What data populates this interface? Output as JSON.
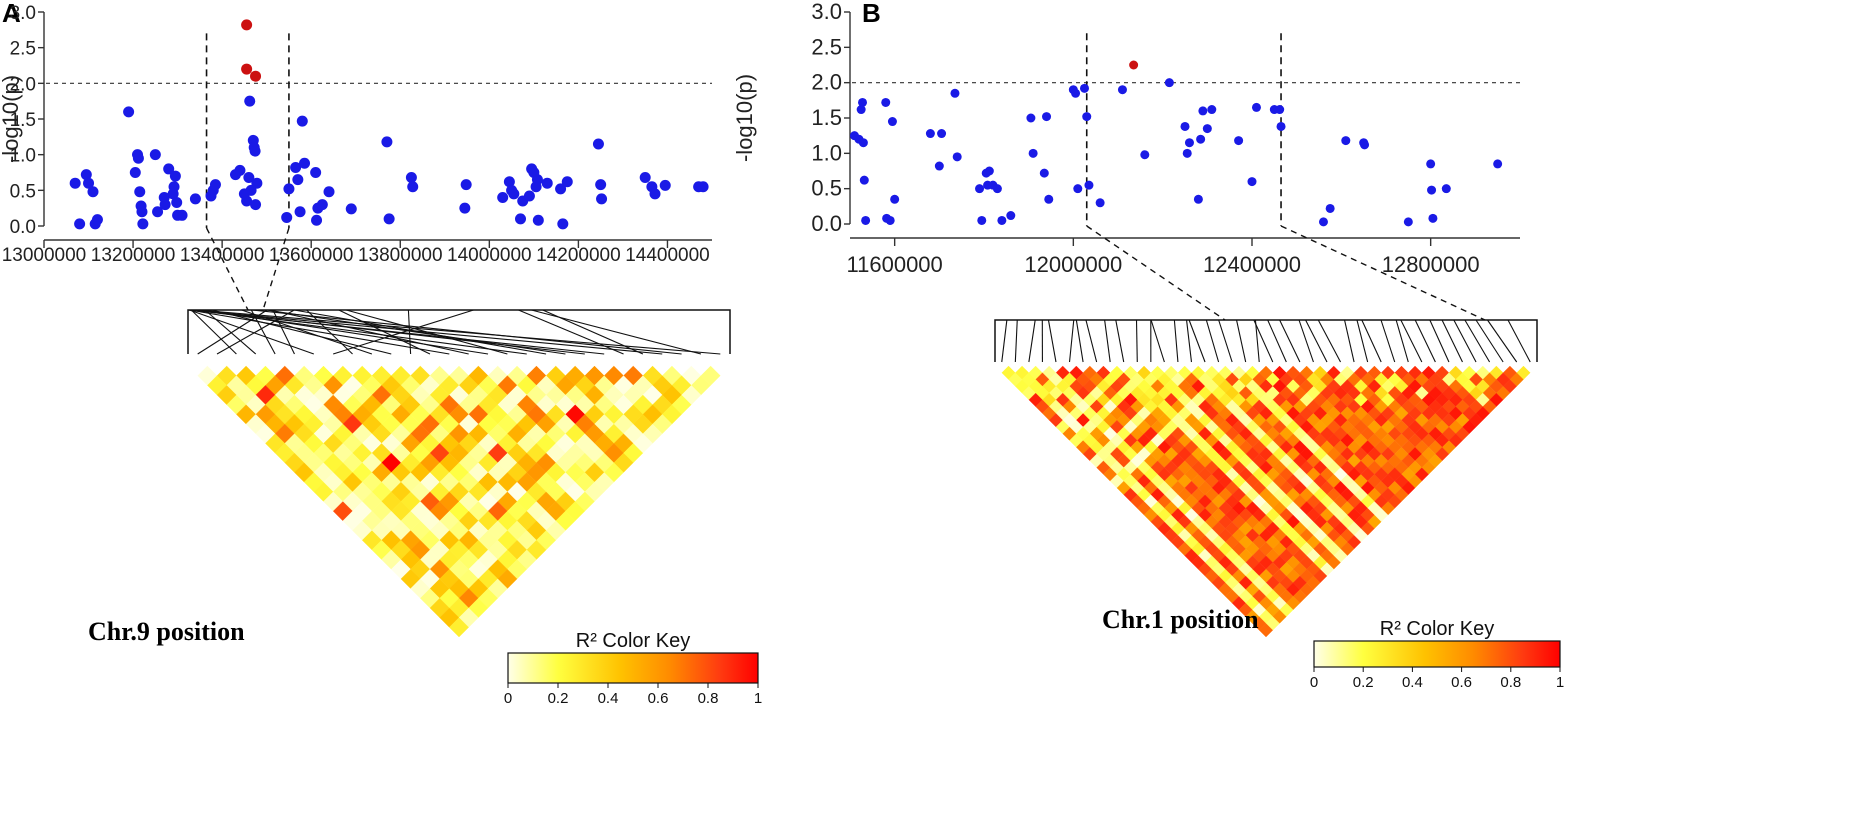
{
  "chart_data": [
    {
      "panel": "A",
      "type": "scatter",
      "ylabel": "-log10(p)",
      "xlim": [
        13000000,
        14500000
      ],
      "ylim": [
        0,
        3
      ],
      "xticks": [
        13000000,
        13200000,
        13400000,
        13600000,
        13800000,
        14000000,
        14200000,
        14400000
      ],
      "xtick_labels": [
        "13000000",
        "13200000",
        "13400000",
        "13600000",
        "13800000",
        "14000000",
        "14200000",
        "14400000"
      ],
      "yticks": [
        0,
        0.5,
        1,
        1.5,
        2,
        2.5,
        3
      ],
      "ytick_labels": [
        "0.0",
        "0.5",
        "1.0",
        "1.5",
        "2.0",
        "2.5",
        "3.0"
      ],
      "threshold": 2.0,
      "region": [
        13365000,
        13550000
      ],
      "significant_color": "#cc1111",
      "point_color": "#1a1ae6",
      "significant": [
        [
          13455000,
          2.82
        ],
        [
          13455000,
          2.2
        ],
        [
          13475000,
          2.1
        ]
      ],
      "points": [
        [
          13070000,
          0.6
        ],
        [
          13080000,
          0.03
        ],
        [
          13095000,
          0.72
        ],
        [
          13100000,
          0.6
        ],
        [
          13110000,
          0.48
        ],
        [
          13115000,
          0.03
        ],
        [
          13120000,
          0.09
        ],
        [
          13190000,
          1.6
        ],
        [
          13205000,
          0.75
        ],
        [
          13210000,
          1.0
        ],
        [
          13212000,
          0.95
        ],
        [
          13215000,
          0.48
        ],
        [
          13218000,
          0.28
        ],
        [
          13220000,
          0.2
        ],
        [
          13222000,
          0.03
        ],
        [
          13250000,
          1.0
        ],
        [
          13255000,
          0.2
        ],
        [
          13270000,
          0.4
        ],
        [
          13272000,
          0.3
        ],
        [
          13280000,
          0.8
        ],
        [
          13290000,
          0.45
        ],
        [
          13292000,
          0.55
        ],
        [
          13295000,
          0.7
        ],
        [
          13298000,
          0.33
        ],
        [
          13300000,
          0.15
        ],
        [
          13310000,
          0.15
        ],
        [
          13340000,
          0.38
        ],
        [
          13380000,
          0.5
        ],
        [
          13385000,
          0.58
        ],
        [
          13375000,
          0.42
        ],
        [
          13430000,
          0.72
        ],
        [
          13440000,
          0.78
        ],
        [
          13450000,
          0.45
        ],
        [
          13455000,
          0.35
        ],
        [
          13460000,
          0.68
        ],
        [
          13462000,
          1.75
        ],
        [
          13465000,
          0.5
        ],
        [
          13470000,
          1.2
        ],
        [
          13472000,
          1.1
        ],
        [
          13474000,
          1.05
        ],
        [
          13478000,
          0.6
        ],
        [
          13475000,
          0.3
        ],
        [
          13545000,
          0.12
        ],
        [
          13550000,
          0.52
        ],
        [
          13565000,
          0.82
        ],
        [
          13570000,
          0.65
        ],
        [
          13575000,
          0.2
        ],
        [
          13580000,
          1.47
        ],
        [
          13585000,
          0.88
        ],
        [
          13610000,
          0.75
        ],
        [
          13612000,
          0.08
        ],
        [
          13615000,
          0.25
        ],
        [
          13625000,
          0.3
        ],
        [
          13640000,
          0.48
        ],
        [
          13690000,
          0.24
        ],
        [
          13770000,
          1.18
        ],
        [
          13775000,
          0.1
        ],
        [
          13825000,
          0.68
        ],
        [
          13828000,
          0.55
        ],
        [
          13945000,
          0.25
        ],
        [
          13948000,
          0.58
        ],
        [
          14030000,
          0.4
        ],
        [
          14045000,
          0.62
        ],
        [
          14050000,
          0.5
        ],
        [
          14055000,
          0.45
        ],
        [
          14070000,
          0.1
        ],
        [
          14075000,
          0.35
        ],
        [
          14090000,
          0.42
        ],
        [
          14095000,
          0.8
        ],
        [
          14100000,
          0.75
        ],
        [
          14105000,
          0.55
        ],
        [
          14108000,
          0.65
        ],
        [
          14110000,
          0.08
        ],
        [
          14130000,
          0.6
        ],
        [
          14160000,
          0.52
        ],
        [
          14165000,
          0.03
        ],
        [
          14175000,
          0.62
        ],
        [
          14245000,
          1.15
        ],
        [
          14250000,
          0.58
        ],
        [
          14252000,
          0.38
        ],
        [
          14350000,
          0.68
        ],
        [
          14365000,
          0.55
        ],
        [
          14372000,
          0.45
        ],
        [
          14395000,
          0.57
        ],
        [
          14470000,
          0.55
        ],
        [
          14480000,
          0.55
        ]
      ],
      "caption": "Chr.9 position",
      "color_key": {
        "title": "R² Color Key",
        "ticks": [
          "0",
          "0.2",
          "0.4",
          "0.6",
          "0.8",
          "1"
        ]
      }
    },
    {
      "panel": "B",
      "type": "scatter",
      "ylabel": "-log10(p)",
      "xlim": [
        11500000,
        13000000
      ],
      "ylim": [
        0,
        3
      ],
      "xticks": [
        11600000,
        12000000,
        12400000,
        12800000
      ],
      "xtick_labels": [
        "11600000",
        "12000000",
        "12400000",
        "12800000"
      ],
      "yticks": [
        0,
        0.5,
        1,
        1.5,
        2,
        2.5,
        3
      ],
      "ytick_labels": [
        "0.0",
        "0.5",
        "1.0",
        "1.5",
        "2.0",
        "2.5",
        "3.0"
      ],
      "threshold": 2.0,
      "region": [
        12030000,
        12465000
      ],
      "significant_color": "#cc1111",
      "point_color": "#1a1ae6",
      "significant": [
        [
          12135000,
          2.25
        ]
      ],
      "points": [
        [
          11510000,
          1.25
        ],
        [
          11520000,
          1.2
        ],
        [
          11525000,
          1.62
        ],
        [
          11528000,
          1.72
        ],
        [
          11530000,
          1.15
        ],
        [
          11532000,
          0.62
        ],
        [
          11535000,
          0.05
        ],
        [
          11580000,
          1.72
        ],
        [
          11582000,
          0.08
        ],
        [
          11590000,
          0.05
        ],
        [
          11595000,
          1.45
        ],
        [
          11600000,
          0.35
        ],
        [
          11680000,
          1.28
        ],
        [
          11700000,
          0.82
        ],
        [
          11705000,
          1.28
        ],
        [
          11735000,
          1.85
        ],
        [
          11740000,
          0.95
        ],
        [
          11790000,
          0.5
        ],
        [
          11795000,
          0.05
        ],
        [
          11805000,
          0.72
        ],
        [
          11808000,
          0.55
        ],
        [
          11812000,
          0.75
        ],
        [
          11820000,
          0.55
        ],
        [
          11830000,
          0.5
        ],
        [
          11840000,
          0.05
        ],
        [
          11860000,
          0.12
        ],
        [
          11905000,
          1.5
        ],
        [
          11910000,
          1.0
        ],
        [
          11935000,
          0.72
        ],
        [
          11940000,
          1.52
        ],
        [
          11945000,
          0.35
        ],
        [
          12000000,
          1.9
        ],
        [
          12005000,
          1.85
        ],
        [
          12010000,
          0.5
        ],
        [
          12025000,
          1.92
        ],
        [
          12030000,
          1.52
        ],
        [
          12035000,
          0.55
        ],
        [
          12060000,
          0.3
        ],
        [
          12110000,
          1.9
        ],
        [
          12160000,
          0.98
        ],
        [
          12215000,
          2.0
        ],
        [
          12250000,
          1.38
        ],
        [
          12255000,
          1.0
        ],
        [
          12260000,
          1.15
        ],
        [
          12280000,
          0.35
        ],
        [
          12285000,
          1.2
        ],
        [
          12290000,
          1.6
        ],
        [
          12300000,
          1.35
        ],
        [
          12310000,
          1.62
        ],
        [
          12370000,
          1.18
        ],
        [
          12400000,
          0.6
        ],
        [
          12410000,
          1.65
        ],
        [
          12450000,
          1.62
        ],
        [
          12462000,
          1.62
        ],
        [
          12465000,
          1.38
        ],
        [
          12560000,
          0.03
        ],
        [
          12575000,
          0.22
        ],
        [
          12610000,
          1.18
        ],
        [
          12650000,
          1.15
        ],
        [
          12652000,
          1.12
        ],
        [
          12750000,
          0.03
        ],
        [
          12800000,
          0.85
        ],
        [
          12802000,
          0.48
        ],
        [
          12805000,
          0.08
        ],
        [
          12835000,
          0.5
        ],
        [
          12950000,
          0.85
        ]
      ],
      "caption": "Chr.1 position",
      "color_key": {
        "title": "R² Color Key",
        "ticks": [
          "0",
          "0.2",
          "0.4",
          "0.6",
          "0.8",
          "1"
        ]
      }
    }
  ]
}
